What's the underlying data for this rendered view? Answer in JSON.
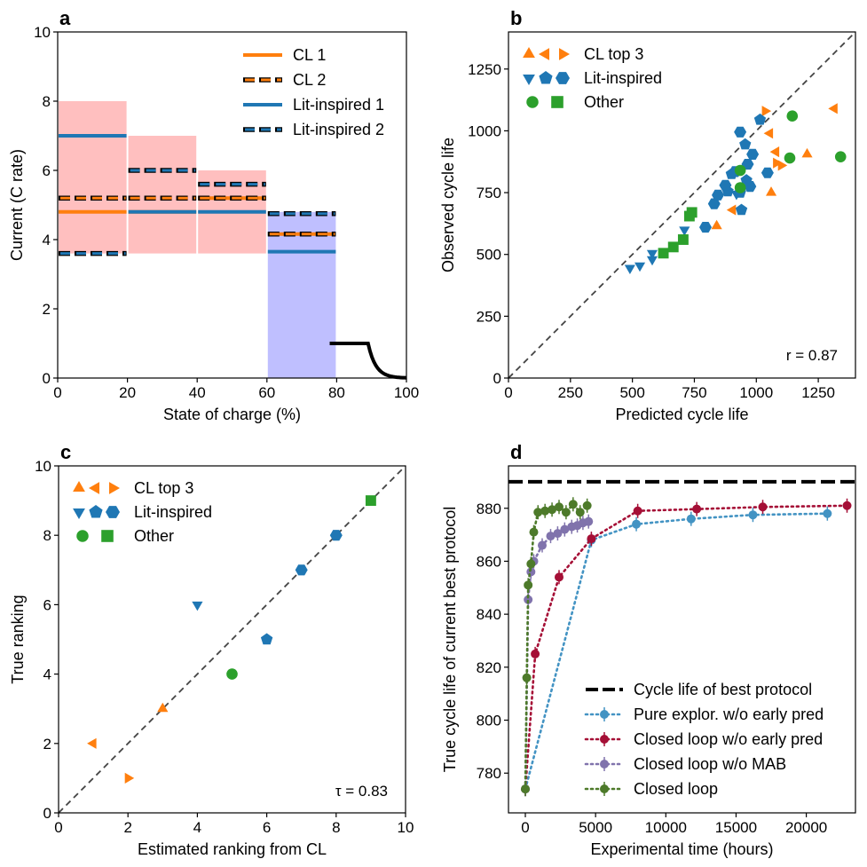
{
  "colors": {
    "orange": "#ff7f0e",
    "blue": "#1f77b4",
    "green": "#2ca02c",
    "red_fill": "#ffbfbf",
    "blue_fill": "#bfbfff",
    "pure": "#4393c3",
    "closed_no_early": "#a50f36",
    "closed_no_mab": "#8073ac",
    "closed": "#4d7a2a"
  },
  "chart_data": [
    {
      "panel": "a",
      "type": "line",
      "xlabel": "State of charge (%)",
      "ylabel": "Current (C rate)",
      "xlim": [
        0,
        100
      ],
      "ylim": [
        0,
        10
      ],
      "xticks": [
        "0",
        "20",
        "40",
        "60",
        "80",
        "100"
      ],
      "yticks": [
        "0",
        "2",
        "4",
        "6",
        "8",
        "10"
      ],
      "shaded_regions": [
        {
          "x": [
            0,
            20
          ],
          "y": [
            3.6,
            8
          ],
          "color": "red"
        },
        {
          "x": [
            20,
            40
          ],
          "y": [
            3.6,
            7
          ],
          "color": "red"
        },
        {
          "x": [
            40,
            60
          ],
          "y": [
            3.6,
            6
          ],
          "color": "red"
        },
        {
          "x": [
            60,
            80
          ],
          "y": [
            0,
            4.8
          ],
          "color": "blue"
        }
      ],
      "series": [
        {
          "name": "CL 1",
          "style": "solid",
          "color": "orange",
          "steps": [
            [
              0,
              20,
              4.8
            ],
            [
              20,
              40,
              4.8
            ],
            [
              40,
              60,
              5.2
            ],
            [
              60,
              80,
              4.16
            ]
          ]
        },
        {
          "name": "CL 2",
          "style": "dashed",
          "color": "orange",
          "steps": [
            [
              0,
              20,
              5.2
            ],
            [
              20,
              40,
              5.2
            ],
            [
              40,
              60,
              5.2
            ],
            [
              60,
              80,
              4.16
            ]
          ]
        },
        {
          "name": "Lit-inspired 1",
          "style": "solid",
          "color": "blue",
          "steps": [
            [
              0,
              20,
              7.0
            ],
            [
              20,
              40,
              4.8
            ],
            [
              40,
              60,
              4.8
            ],
            [
              60,
              80,
              3.65
            ]
          ]
        },
        {
          "name": "Lit-inspired 2",
          "style": "dashed",
          "color": "blue",
          "steps": [
            [
              0,
              20,
              3.6
            ],
            [
              20,
              40,
              6.0
            ],
            [
              40,
              60,
              5.6
            ],
            [
              60,
              80,
              4.75
            ]
          ]
        }
      ],
      "cv_segment": {
        "x": [
          80,
          100
        ],
        "y_start": 1,
        "y_end": 0
      }
    },
    {
      "panel": "b",
      "type": "scatter",
      "xlabel": "Predicted cycle life",
      "ylabel": "Observed cycle life",
      "xlim": [
        0,
        1400
      ],
      "ylim": [
        0,
        1400
      ],
      "xticks": [
        "0",
        "250",
        "500",
        "750",
        "1000",
        "1250"
      ],
      "yticks": [
        "0",
        "250",
        "500",
        "750",
        "1000",
        "1250"
      ],
      "legend": [
        "CL top 3",
        "Lit-inspired",
        "Other"
      ],
      "annotation": "r = 0.87",
      "points": [
        {
          "g": "orange",
          "m": "tri-up",
          "x": 840,
          "y": 615
        },
        {
          "g": "orange",
          "m": "tri-up",
          "x": 1060,
          "y": 750
        },
        {
          "g": "orange",
          "m": "tri-up",
          "x": 1205,
          "y": 905
        },
        {
          "g": "orange",
          "m": "tri-left",
          "x": 905,
          "y": 680
        },
        {
          "g": "orange",
          "m": "tri-left",
          "x": 1055,
          "y": 990
        },
        {
          "g": "orange",
          "m": "tri-left",
          "x": 1080,
          "y": 915
        },
        {
          "g": "orange",
          "m": "tri-left",
          "x": 1315,
          "y": 1090
        },
        {
          "g": "orange",
          "m": "tri-right",
          "x": 1035,
          "y": 1080
        },
        {
          "g": "orange",
          "m": "tri-right",
          "x": 1080,
          "y": 870
        },
        {
          "g": "orange",
          "m": "tri-right",
          "x": 1100,
          "y": 860
        },
        {
          "g": "blue",
          "m": "tri-down",
          "x": 490,
          "y": 445
        },
        {
          "g": "blue",
          "m": "tri-down",
          "x": 530,
          "y": 455
        },
        {
          "g": "blue",
          "m": "tri-down",
          "x": 580,
          "y": 480
        },
        {
          "g": "blue",
          "m": "tri-down",
          "x": 580,
          "y": 505
        },
        {
          "g": "blue",
          "m": "tri-down",
          "x": 710,
          "y": 600
        },
        {
          "g": "blue",
          "m": "tri-down",
          "x": 920,
          "y": 745
        },
        {
          "g": "blue",
          "m": "pent",
          "x": 885,
          "y": 755
        },
        {
          "g": "blue",
          "m": "pent",
          "x": 900,
          "y": 825
        },
        {
          "g": "blue",
          "m": "pent",
          "x": 935,
          "y": 750
        },
        {
          "g": "blue",
          "m": "pent",
          "x": 940,
          "y": 680
        },
        {
          "g": "blue",
          "m": "pent",
          "x": 955,
          "y": 945
        },
        {
          "g": "blue",
          "m": "pent",
          "x": 960,
          "y": 800
        },
        {
          "g": "blue",
          "m": "pent",
          "x": 1015,
          "y": 1045
        },
        {
          "g": "blue",
          "m": "hex",
          "x": 795,
          "y": 610
        },
        {
          "g": "blue",
          "m": "hex",
          "x": 830,
          "y": 705
        },
        {
          "g": "blue",
          "m": "hex",
          "x": 845,
          "y": 740
        },
        {
          "g": "blue",
          "m": "hex",
          "x": 875,
          "y": 780
        },
        {
          "g": "blue",
          "m": "hex",
          "x": 915,
          "y": 835
        },
        {
          "g": "blue",
          "m": "hex",
          "x": 935,
          "y": 995
        },
        {
          "g": "blue",
          "m": "hex",
          "x": 965,
          "y": 865
        },
        {
          "g": "blue",
          "m": "hex",
          "x": 975,
          "y": 775
        },
        {
          "g": "blue",
          "m": "hex",
          "x": 985,
          "y": 905
        },
        {
          "g": "blue",
          "m": "hex",
          "x": 1045,
          "y": 830
        },
        {
          "g": "green",
          "m": "circ",
          "x": 935,
          "y": 840
        },
        {
          "g": "green",
          "m": "circ",
          "x": 935,
          "y": 770
        },
        {
          "g": "green",
          "m": "circ",
          "x": 1135,
          "y": 890
        },
        {
          "g": "green",
          "m": "circ",
          "x": 1145,
          "y": 1060
        },
        {
          "g": "green",
          "m": "circ",
          "x": 1340,
          "y": 895
        },
        {
          "g": "green",
          "m": "sq",
          "x": 625,
          "y": 505
        },
        {
          "g": "green",
          "m": "sq",
          "x": 665,
          "y": 530
        },
        {
          "g": "green",
          "m": "sq",
          "x": 705,
          "y": 560
        },
        {
          "g": "green",
          "m": "sq",
          "x": 730,
          "y": 655
        },
        {
          "g": "green",
          "m": "sq",
          "x": 740,
          "y": 670
        }
      ]
    },
    {
      "panel": "c",
      "type": "scatter",
      "xlabel": "Estimated ranking from CL",
      "ylabel": "True ranking",
      "xlim": [
        0,
        10
      ],
      "ylim": [
        0,
        10
      ],
      "xticks": [
        "0",
        "2",
        "4",
        "6",
        "8",
        "10"
      ],
      "yticks": [
        "0",
        "2",
        "4",
        "6",
        "8",
        "10"
      ],
      "legend": [
        "CL top 3",
        "Lit-inspired",
        "Other"
      ],
      "annotation": "τ = 0.83",
      "points": [
        {
          "g": "orange",
          "m": "tri-left",
          "x": 1,
          "y": 2
        },
        {
          "g": "orange",
          "m": "tri-right",
          "x": 2,
          "y": 1
        },
        {
          "g": "orange",
          "m": "tri-up",
          "x": 3,
          "y": 3
        },
        {
          "g": "blue",
          "m": "tri-down",
          "x": 4,
          "y": 6
        },
        {
          "g": "green",
          "m": "circ",
          "x": 5,
          "y": 4
        },
        {
          "g": "blue",
          "m": "pent",
          "x": 6,
          "y": 5
        },
        {
          "g": "blue",
          "m": "hex",
          "x": 7,
          "y": 7
        },
        {
          "g": "blue",
          "m": "hex",
          "x": 8,
          "y": 8
        },
        {
          "g": "green",
          "m": "sq",
          "x": 9,
          "y": 9
        }
      ]
    },
    {
      "panel": "d",
      "type": "line",
      "xlabel": "Experimental time (hours)",
      "ylabel": "True cycle life of current best protocol",
      "xlim": [
        -1200,
        23500
      ],
      "ylim": [
        765,
        896
      ],
      "xticks": [
        "0",
        "5000",
        "10000",
        "15000",
        "20000"
      ],
      "yticks": [
        "780",
        "800",
        "820",
        "840",
        "860",
        "880"
      ],
      "reference_line": {
        "name": "Cycle life of best protocol",
        "y": 890
      },
      "series": [
        {
          "name": "Pure explor. w/o early pred",
          "color": "pure",
          "x": [
            0,
            4700,
            7900,
            11800,
            16200,
            21500
          ],
          "y": [
            774,
            868,
            874,
            876,
            877.5,
            878
          ]
        },
        {
          "name": "Closed loop w/o early pred",
          "color": "closed_no_early",
          "x": [
            0,
            700,
            2400,
            4700,
            8000,
            12200,
            16900,
            22900
          ],
          "y": [
            774,
            825,
            854,
            868.5,
            879,
            879.7,
            880.5,
            881
          ]
        },
        {
          "name": "Closed loop w/o MAB",
          "color": "closed_no_mab",
          "x": [
            0,
            200,
            400,
            600,
            1200,
            1800,
            2300,
            2800,
            3300,
            3700,
            4100,
            4500
          ],
          "y": [
            774,
            845.5,
            856,
            860,
            866,
            869.5,
            870.5,
            872,
            873,
            873.5,
            874.5,
            875
          ]
        },
        {
          "name": "Closed loop",
          "color": "closed",
          "x": [
            0,
            100,
            200,
            400,
            600,
            900,
            1400,
            1900,
            2400,
            2900,
            3400,
            3900,
            4400
          ],
          "y": [
            774,
            816,
            851,
            859,
            871,
            878.5,
            879,
            879.5,
            880.5,
            878.5,
            881.5,
            878.5,
            881
          ]
        }
      ]
    }
  ],
  "panel_labels": [
    "a",
    "b",
    "c",
    "d"
  ]
}
